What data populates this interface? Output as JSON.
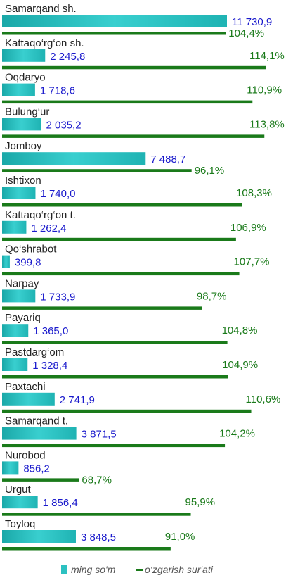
{
  "chart_data": {
    "type": "bar",
    "orientation": "horizontal",
    "categories": [
      "Samarqand sh.",
      "Kattaqo‘rg‘on sh.",
      "Oqdaryo",
      "Bulung‘ur",
      "Jomboy",
      "Ishtixon",
      "Kattaqo‘rg‘on t.",
      "Qo‘shrabot",
      "Narpay",
      "Payariq",
      "Pastdarg‘om",
      "Paxtachi",
      "Samarqand t.",
      "Nurobod",
      "Urgut",
      "Toyloq"
    ],
    "series": [
      {
        "name": "ming so'm",
        "values": [
          11730.9,
          2245.8,
          1718.6,
          2035.2,
          7488.7,
          1740.0,
          1262.4,
          399.8,
          1733.9,
          1365.0,
          1328.4,
          2741.9,
          3871.5,
          856.2,
          1856.4,
          3848.5
        ],
        "labels": [
          "11 730,9",
          "2 245,8",
          "1 718,6",
          "2 035,2",
          "7 488,7",
          "1 740,0",
          "1 262,4",
          "399,8",
          "1 733,9",
          "1 365,0",
          "1 328,4",
          "2 741,9",
          "3 871,5",
          "856,2",
          "1 856,4",
          "3 848,5"
        ],
        "color": "#2cc1c1"
      },
      {
        "name": "o‘zgarish sur'ati",
        "values": [
          104.4,
          114.1,
          110.9,
          113.8,
          96.1,
          108.3,
          106.9,
          107.7,
          98.7,
          104.8,
          104.9,
          110.6,
          104.2,
          68.7,
          95.9,
          91.0
        ],
        "labels": [
          "104,4%",
          "114,1%",
          "110,9%",
          "113,8%",
          "96,1%",
          "108,3%",
          "106,9%",
          "107,7%",
          "98,7%",
          "104,8%",
          "104,9%",
          "110,6%",
          "104,2%",
          "68,7%",
          "95,9%",
          "91,0%"
        ],
        "color": "#1a7a1a"
      }
    ],
    "legend_position": "bottom",
    "grid": false
  }
}
